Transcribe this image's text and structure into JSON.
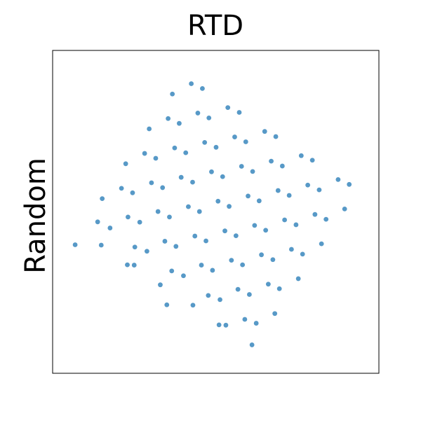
{
  "chart_data": {
    "type": "scatter",
    "title": "RTD",
    "y_label": "Random",
    "color": "#1f77b4",
    "xlim": [
      0,
      100
    ],
    "ylim": [
      0,
      100
    ],
    "x": [
      6.9,
      14.9,
      22.9,
      25.0,
      33.0,
      35.0,
      43.0,
      51.0,
      53.1,
      61.1,
      13.8,
      17.6,
      25.2,
      28.9,
      36.5,
      40.1,
      47.7,
      51.3,
      58.9,
      62.4,
      15.2,
      23.1,
      26.7,
      34.4,
      37.8,
      45.6,
      49.0,
      56.8,
      60.3,
      68.1,
      21.1,
      24.5,
      32.3,
      35.8,
      43.6,
      47.0,
      54.8,
      58.2,
      66.1,
      69.5,
      22.4,
      30.3,
      33.7,
      41.6,
      45.0,
      52.8,
      56.2,
      64.0,
      67.5,
      75.3,
      28.2,
      31.6,
      39.4,
      42.9,
      50.7,
      54.1,
      61.9,
      65.3,
      73.2,
      76.6,
      29.6,
      37.4,
      40.8,
      48.7,
      52.1,
      59.9,
      63.3,
      71.1,
      74.6,
      82.4,
      35.4,
      38.8,
      46.6,
      50.1,
      57.9,
      61.3,
      69.1,
      72.5,
      80.4,
      83.8,
      36.7,
      44.5,
      47.9,
      55.8,
      59.2,
      67.0,
      70.4,
      78.2,
      81.7,
      89.5,
      42.5,
      45.9,
      53.7,
      57.2,
      65.0,
      68.4,
      76.2,
      79.6,
      87.5,
      90.9
    ],
    "values": [
      39.8,
      39.7,
      33.6,
      33.5,
      27.4,
      21.2,
      21.1,
      15.0,
      14.9,
      8.8,
      46.9,
      45.0,
      39.1,
      37.8,
      31.7,
      30.2,
      24.1,
      22.8,
      16.7,
      15.5,
      54.1,
      48.4,
      46.8,
      40.9,
      39.3,
      33.5,
      31.9,
      26.0,
      24.4,
      18.5,
      57.3,
      55.9,
      50.1,
      48.4,
      42.5,
      41.0,
      35.0,
      33.6,
      27.6,
      26.2,
      64.9,
      59.0,
      57.5,
      51.6,
      50.1,
      44.1,
      42.6,
      36.7,
      35.2,
      29.3,
      68.1,
      66.6,
      60.7,
      59.2,
      53.3,
      51.7,
      45.8,
      44.3,
      38.4,
      36.9,
      75.7,
      69.8,
      68.3,
      62.4,
      60.9,
      54.9,
      53.4,
      47.5,
      46.0,
      40.1,
      78.9,
      77.4,
      71.5,
      70.0,
      64.1,
      62.5,
      56.6,
      55.1,
      49.2,
      47.7,
      86.5,
      80.6,
      79.1,
      73.2,
      71.7,
      65.7,
      64.2,
      58.3,
      56.8,
      50.9,
      89.7,
      88.2,
      82.3,
      80.8,
      74.9,
      73.3,
      67.4,
      66.0,
      60.0,
      58.5
    ]
  }
}
